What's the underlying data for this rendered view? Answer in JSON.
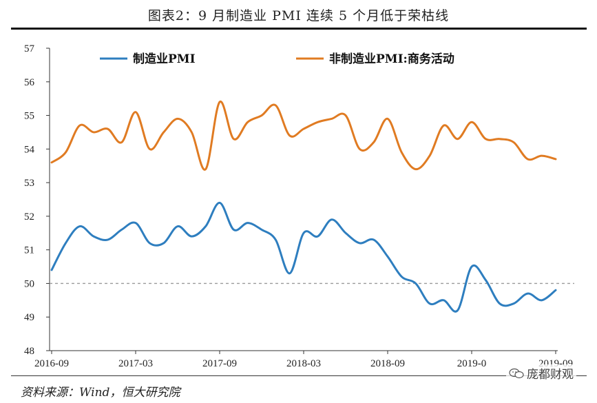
{
  "title": "图表2：9 月制造业 PMI 连续 5 个月低于荣枯线",
  "source": "资料来源：Wind，恒大研究院",
  "watermark": "庞都财观",
  "chart_data": {
    "type": "line",
    "x": [
      "2016-09",
      "2016-10",
      "2016-11",
      "2016-12",
      "2017-01",
      "2017-02",
      "2017-03",
      "2017-04",
      "2017-05",
      "2017-06",
      "2017-07",
      "2017-08",
      "2017-09",
      "2017-10",
      "2017-11",
      "2017-12",
      "2018-01",
      "2018-02",
      "2018-03",
      "2018-04",
      "2018-05",
      "2018-06",
      "2018-07",
      "2018-08",
      "2018-09",
      "2018-10",
      "2018-11",
      "2018-12",
      "2019-01",
      "2019-02",
      "2019-03",
      "2019-04",
      "2019-05",
      "2019-06",
      "2019-07",
      "2019-08",
      "2019-09"
    ],
    "xtick_labels": [
      "2016-09",
      "2017-03",
      "2017-09",
      "2018-03",
      "2018-09",
      "2019-03",
      "2019-09"
    ],
    "xtick_labels_display": [
      "2016-09",
      "2017-03",
      "2017-09",
      "2018-03",
      "2018-09",
      "2019-0",
      "2019-09"
    ],
    "series": [
      {
        "name": "制造业PMI",
        "color": "#2e7ebf",
        "values": [
          50.4,
          51.2,
          51.7,
          51.4,
          51.3,
          51.6,
          51.8,
          51.2,
          51.2,
          51.7,
          51.4,
          51.7,
          52.4,
          51.6,
          51.8,
          51.6,
          51.3,
          50.3,
          51.5,
          51.4,
          51.9,
          51.5,
          51.2,
          51.3,
          50.8,
          50.2,
          50.0,
          49.4,
          49.5,
          49.2,
          50.5,
          50.1,
          49.4,
          49.4,
          49.7,
          49.5,
          49.8
        ]
      },
      {
        "name": "非制造业PMI:商务活动",
        "color": "#e07b22",
        "values": [
          53.6,
          53.9,
          54.7,
          54.5,
          54.6,
          54.2,
          55.1,
          54.0,
          54.5,
          54.9,
          54.5,
          53.4,
          55.4,
          54.3,
          54.8,
          55.0,
          55.3,
          54.4,
          54.6,
          54.8,
          54.9,
          55.0,
          54.0,
          54.2,
          54.9,
          53.9,
          53.4,
          53.8,
          54.7,
          54.3,
          54.8,
          54.3,
          54.3,
          54.2,
          53.7,
          53.8,
          53.7
        ]
      }
    ],
    "reference_line": 50,
    "ylim": [
      48,
      57
    ],
    "yticks": [
      48,
      49,
      50,
      51,
      52,
      53,
      54,
      55,
      56,
      57
    ],
    "legend_position": "top"
  }
}
